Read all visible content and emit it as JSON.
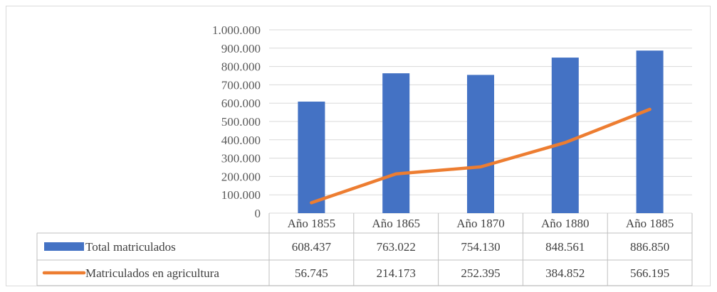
{
  "chart_data": {
    "type": "bar",
    "categories": [
      "Año 1855",
      "Año 1865",
      "Año 1870",
      "Año 1880",
      "Año 1885"
    ],
    "series": [
      {
        "name": "Total matriculados",
        "type": "bar",
        "color": "#4472C4",
        "values": [
          608437,
          763022,
          754130,
          848561,
          886850
        ],
        "labels": [
          "608.437",
          "763.022",
          "754.130",
          "848.561",
          "886.850"
        ]
      },
      {
        "name": "Matriculados en agricultura",
        "type": "line",
        "color": "#ED7D31",
        "values": [
          56745,
          214173,
          252395,
          384852,
          566195
        ],
        "labels": [
          "56.745",
          "214.173",
          "252.395",
          "384.852",
          "566.195"
        ]
      }
    ],
    "ylim": [
      0,
      1000000
    ],
    "yticks": [
      0,
      100000,
      200000,
      300000,
      400000,
      500000,
      600000,
      700000,
      800000,
      900000,
      1000000
    ],
    "ytick_labels": [
      "0",
      "100.000",
      "200.000",
      "300.000",
      "400.000",
      "500.000",
      "600.000",
      "700.000",
      "800.000",
      "900.000",
      "1.000.000"
    ],
    "grid": true,
    "legend": "data-table"
  }
}
